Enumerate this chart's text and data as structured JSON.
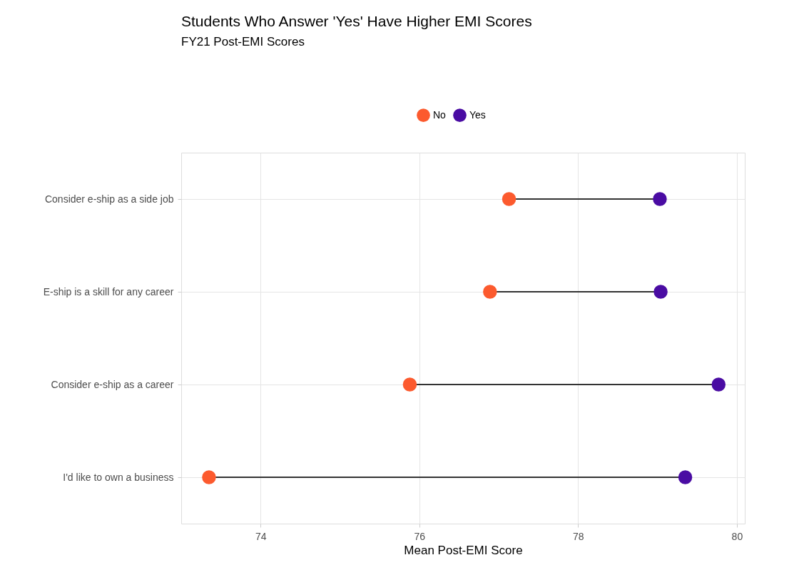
{
  "chart_data": {
    "type": "scatter",
    "orientation": "horizontal",
    "title": "Students Who Answer 'Yes' Have Higher EMI Scores",
    "subtitle": "FY21 Post-EMI Scores",
    "xlabel": "Mean Post-EMI Score",
    "categories": [
      "Consider e-ship as a side job",
      "E-ship is a skill for any career",
      "Consider e-ship as a career",
      "I'd like to own a business"
    ],
    "series": [
      {
        "name": "No",
        "color": "#fc5a2e",
        "values": [
          77.13,
          76.89,
          75.88,
          73.35
        ]
      },
      {
        "name": "Yes",
        "color": "#4a0ca3",
        "values": [
          79.03,
          79.04,
          79.77,
          79.35
        ]
      }
    ],
    "xlim": [
      73.0,
      80.1
    ],
    "xticks": [
      74,
      76,
      78,
      80
    ],
    "grid": true,
    "legend": "top",
    "marker": "circle"
  }
}
